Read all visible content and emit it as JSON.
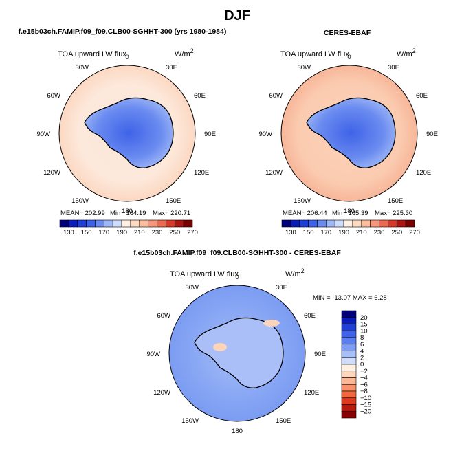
{
  "page_title": "DJF",
  "panels": [
    {
      "id": "model",
      "title": "f.e15b03ch.FAMIP.f09_f09.CLB00-SGHHT-300 (yrs 1980-1984)",
      "field_label": "TOA upward LW flux",
      "units": "W/m",
      "units_exp": "2",
      "lon_labels": [
        "0",
        "30E",
        "60E",
        "90E",
        "120E",
        "150E",
        "180",
        "150W",
        "120W",
        "90W",
        "60W",
        "30W"
      ],
      "stats": {
        "mean": "MEAN= 202.99",
        "min": "Min= 164.19",
        "max": "Max= 220.71"
      }
    },
    {
      "id": "obs",
      "title": "CERES-EBAF",
      "field_label": "TOA upward LW flux",
      "units": "W/m",
      "units_exp": "2",
      "lon_labels": [
        "0",
        "30E",
        "60E",
        "90E",
        "120E",
        "150E",
        "180",
        "150W",
        "120W",
        "90W",
        "60W",
        "30W"
      ],
      "stats": {
        "mean": "MEAN= 206.44",
        "min": "Min= 165.39",
        "max": "Max= 225.30"
      }
    },
    {
      "id": "diff",
      "title": "f.e15b03ch.FAMIP.f09_f09.CLB00-SGHHT-300 - CERES-EBAF",
      "field_label": "TOA upward LW flux",
      "units": "W/m",
      "units_exp": "2",
      "lon_labels": [
        "0",
        "30E",
        "60E",
        "90E",
        "120E",
        "150E",
        "180",
        "150W",
        "120W",
        "90W",
        "60W",
        "30W"
      ],
      "stats": {
        "minmax": "MIN = -13.07  MAX =    6.28"
      }
    }
  ],
  "colorbars": {
    "abs": {
      "colors": [
        "#00007a",
        "#0a1db8",
        "#1f3fd6",
        "#3f63e8",
        "#6a8bf0",
        "#9db6f6",
        "#cddcfb",
        "#fff0e2",
        "#fdd9c0",
        "#fbbd9c",
        "#f7967a",
        "#ec6a50",
        "#d83a2a",
        "#aa1511",
        "#7a0000"
      ],
      "labels": [
        "130",
        "150",
        "170",
        "190",
        "210",
        "230",
        "250",
        "270"
      ]
    },
    "diff": {
      "colors": [
        "#00007a",
        "#0a1db8",
        "#1f3fd6",
        "#3f63e8",
        "#5a7ff0",
        "#7e9ef5",
        "#a6bff8",
        "#cfdcfb",
        "#fff0e2",
        "#fdd6bd",
        "#fbb695",
        "#f8916c",
        "#f1673f",
        "#de3a1f",
        "#b81b0d",
        "#8a0000"
      ],
      "labels": [
        "20",
        "15",
        "10",
        "8",
        "6",
        "4",
        "2",
        "0",
        "−2",
        "−4",
        "−6",
        "−8",
        "−10",
        "−15",
        "−20"
      ]
    }
  }
}
